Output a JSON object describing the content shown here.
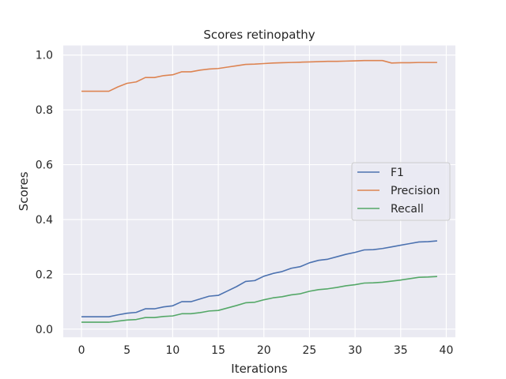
{
  "chart_data": {
    "type": "line",
    "title": "Scores retinopathy",
    "xlabel": "Iterations",
    "ylabel": "Scores",
    "xlim": [
      -2,
      41
    ],
    "ylim": [
      -0.03,
      1.035
    ],
    "xticks": [
      0,
      5,
      10,
      15,
      20,
      25,
      30,
      35,
      40
    ],
    "yticks": [
      0.0,
      0.2,
      0.4,
      0.6,
      0.8,
      1.0
    ],
    "xtick_labels": [
      "0",
      "5",
      "10",
      "15",
      "20",
      "25",
      "30",
      "35",
      "40"
    ],
    "ytick_labels": [
      "0.0",
      "0.2",
      "0.4",
      "0.6",
      "0.8",
      "1.0"
    ],
    "grid": true,
    "legend_position": "center-right",
    "background": "#EAEAF2",
    "x": [
      0,
      1,
      2,
      3,
      4,
      5,
      6,
      7,
      8,
      9,
      10,
      11,
      12,
      13,
      14,
      15,
      16,
      17,
      18,
      19,
      20,
      21,
      22,
      23,
      24,
      25,
      26,
      27,
      28,
      29,
      30,
      31,
      32,
      33,
      34,
      35,
      36,
      37,
      38,
      39
    ],
    "series": [
      {
        "name": "F1",
        "color": "#4C72B0",
        "values": [
          0.045,
          0.045,
          0.045,
          0.045,
          0.052,
          0.058,
          0.061,
          0.074,
          0.074,
          0.081,
          0.085,
          0.1,
          0.1,
          0.11,
          0.12,
          0.123,
          0.139,
          0.155,
          0.174,
          0.177,
          0.193,
          0.203,
          0.21,
          0.222,
          0.228,
          0.242,
          0.251,
          0.255,
          0.264,
          0.273,
          0.28,
          0.289,
          0.29,
          0.294,
          0.3,
          0.306,
          0.312,
          0.318,
          0.319,
          0.322
        ]
      },
      {
        "name": "Precision",
        "color": "#DD8452",
        "values": [
          0.868,
          0.868,
          0.868,
          0.868,
          0.884,
          0.897,
          0.902,
          0.918,
          0.918,
          0.925,
          0.928,
          0.939,
          0.939,
          0.945,
          0.949,
          0.951,
          0.956,
          0.961,
          0.966,
          0.967,
          0.969,
          0.971,
          0.972,
          0.973,
          0.974,
          0.975,
          0.976,
          0.977,
          0.977,
          0.978,
          0.979,
          0.98,
          0.98,
          0.98,
          0.971,
          0.972,
          0.972,
          0.973,
          0.973,
          0.973
        ]
      },
      {
        "name": "Recall",
        "color": "#55A868",
        "values": [
          0.025,
          0.025,
          0.025,
          0.025,
          0.029,
          0.033,
          0.035,
          0.042,
          0.042,
          0.046,
          0.048,
          0.056,
          0.056,
          0.06,
          0.066,
          0.068,
          0.077,
          0.086,
          0.096,
          0.098,
          0.107,
          0.114,
          0.118,
          0.125,
          0.129,
          0.138,
          0.144,
          0.147,
          0.152,
          0.158,
          0.162,
          0.168,
          0.169,
          0.171,
          0.175,
          0.179,
          0.184,
          0.189,
          0.19,
          0.192
        ]
      }
    ]
  }
}
